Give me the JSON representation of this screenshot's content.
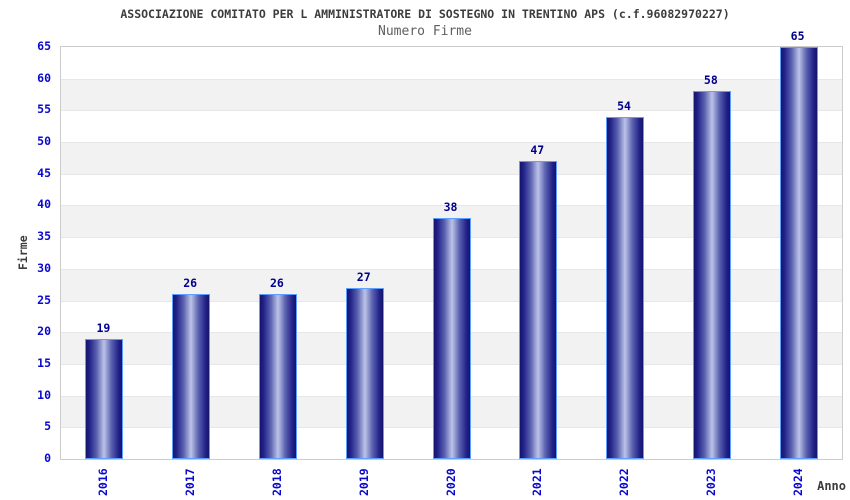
{
  "chart_data": {
    "type": "bar",
    "title": "ASSOCIAZIONE COMITATO PER L AMMINISTRATORE DI SOSTEGNO IN TRENTINO APS (c.f.96082970227)",
    "subtitle": "Numero Firme",
    "xlabel": "Anno",
    "ylabel": "Firme",
    "categories": [
      "2016",
      "2017",
      "2018",
      "2019",
      "2020",
      "2021",
      "2022",
      "2023",
      "2024"
    ],
    "values": [
      19,
      26,
      26,
      27,
      38,
      47,
      54,
      58,
      65
    ],
    "ylim": [
      0,
      65
    ],
    "ytick_step": 5,
    "grid": "alternating horizontal bands every 5 units, white and light gray",
    "legend": "none",
    "colors": {
      "bar_dark": "#14146a",
      "bar_light": "#bcc3e8",
      "bar_border": "#5c9fff",
      "tick_label": "#0909cd",
      "value_label": "#00008b",
      "title": "#3c3c3c",
      "subtitle": "#5f5f5f",
      "band_gray": "#f2f2f2",
      "plot_border": "#cccccc"
    }
  }
}
